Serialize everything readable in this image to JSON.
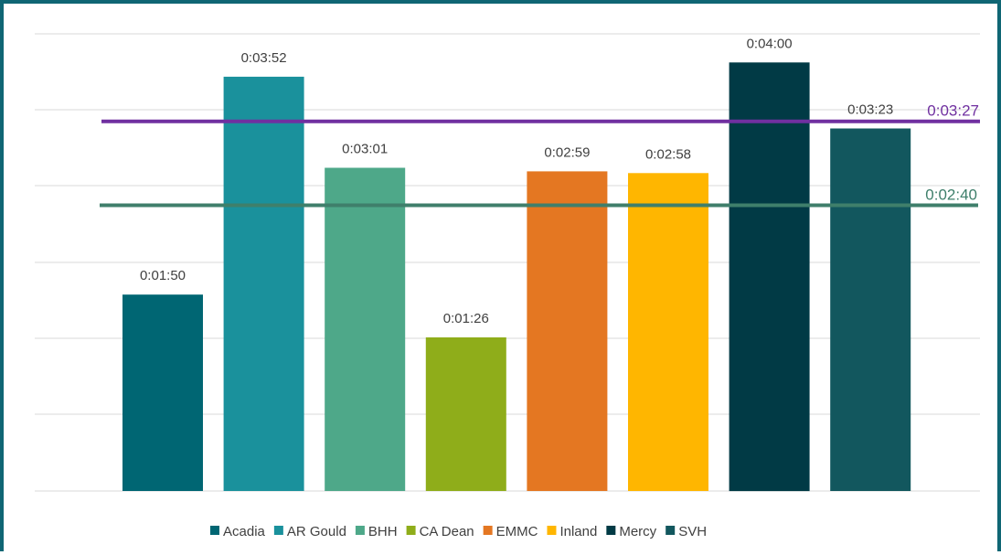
{
  "chart_data": {
    "type": "bar",
    "title": "",
    "xlabel": "",
    "ylabel": "",
    "categories": [
      "Acadia",
      "AR Gould",
      "BHH",
      "CA Dean",
      "EMMC",
      "Inland",
      "Mercy",
      "SVH"
    ],
    "values_seconds": [
      110,
      232,
      181,
      86,
      179,
      178,
      240,
      203
    ],
    "data_labels": [
      "0:01:50",
      "0:03:52",
      "0:03:01",
      "0:01:26",
      "0:02:59",
      "0:02:58",
      "0:04:00",
      "0:03:23"
    ],
    "colors": [
      "#006673",
      "#1a919c",
      "#4ea889",
      "#8fad1a",
      "#e47722",
      "#ffb600",
      "#013a45",
      "#12575e"
    ],
    "ylim_seconds": [
      0,
      256
    ],
    "grid": true,
    "legend_position": "bottom",
    "reference_lines": [
      {
        "value_seconds": 207,
        "label": "0:03:27",
        "color": "#7030a0"
      },
      {
        "value_seconds": 160,
        "label": "0:02:40",
        "color": "#3f7f6b"
      }
    ]
  },
  "frame_color": "#0f6674",
  "gridline_color": "#d9d9d9"
}
